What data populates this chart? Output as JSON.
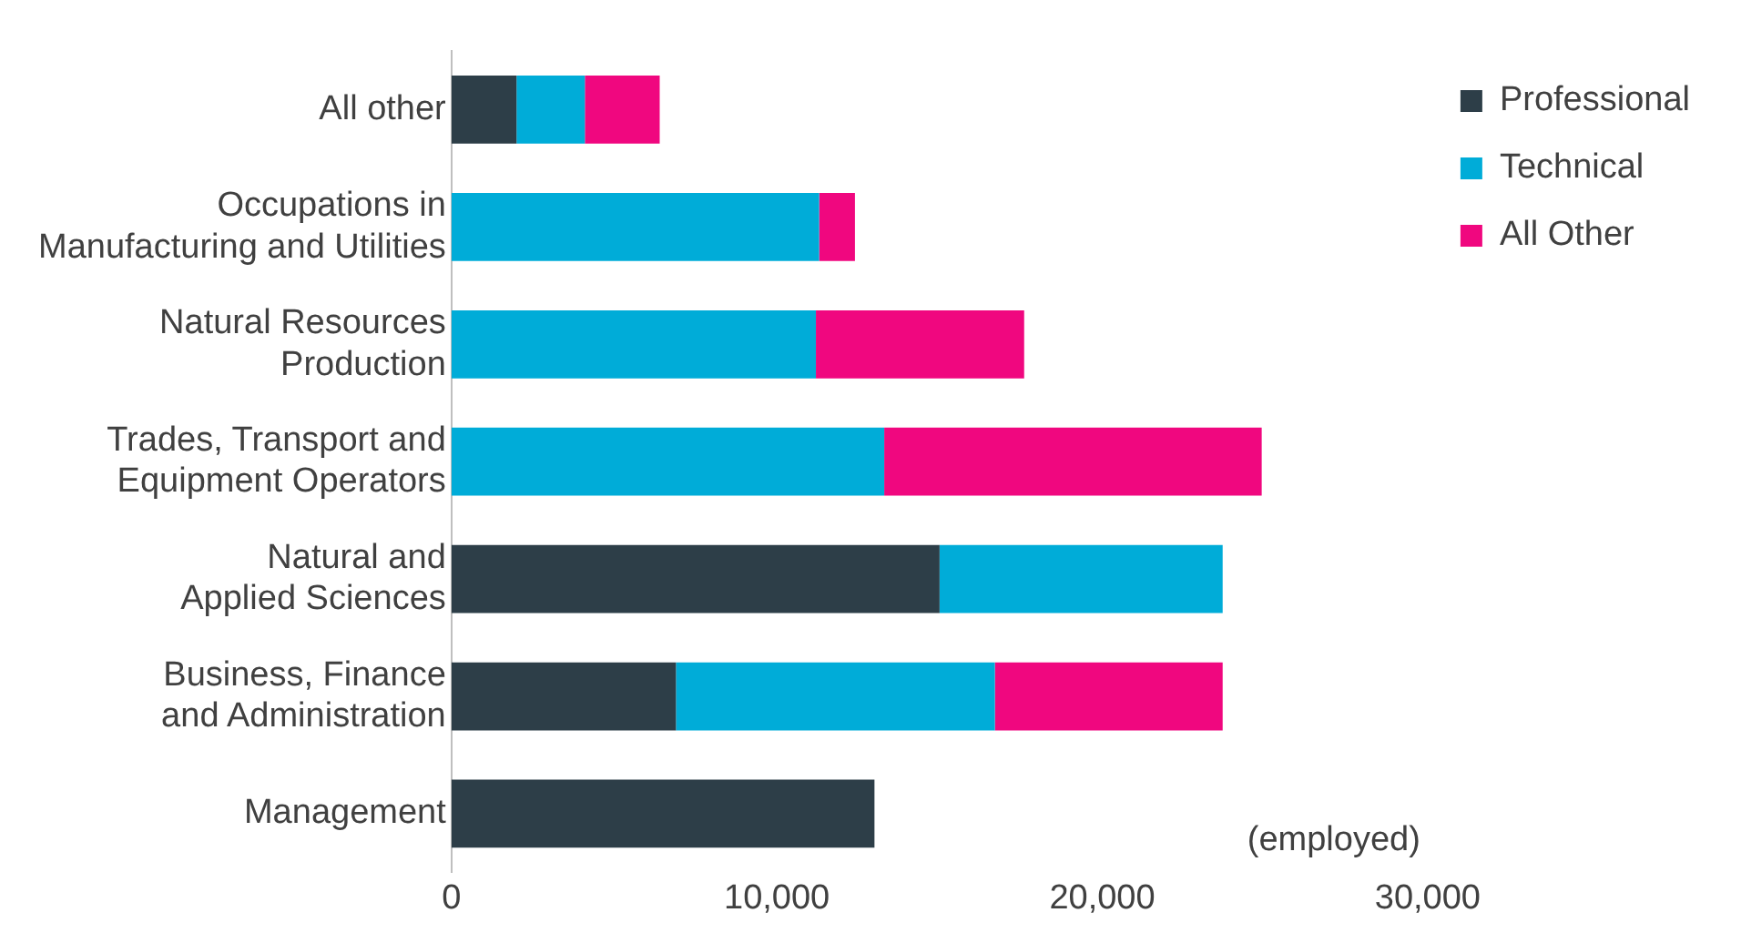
{
  "chart_data": {
    "type": "bar",
    "orientation": "horizontal",
    "stacked": true,
    "categories": [
      "All other",
      "Occupations in Manufacturing and Utilities",
      "Natural Resources Production",
      "Trades, Transport and Equipment Operators",
      "Natural and Applied Sciences",
      "Business, Finance and Administration",
      "Management"
    ],
    "series": [
      {
        "name": "Professional",
        "color": "#2d3e48",
        "values": [
          2000,
          0,
          0,
          0,
          15000,
          6900,
          13000
        ]
      },
      {
        "name": "Technical",
        "color": "#00acd8",
        "values": [
          2100,
          11300,
          11200,
          13300,
          8700,
          9800,
          0
        ]
      },
      {
        "name": "All Other",
        "color": "#f0077f",
        "values": [
          2300,
          1100,
          6400,
          11600,
          0,
          7000,
          0
        ]
      }
    ],
    "xlim": [
      0,
      30000
    ],
    "xticks": [
      0,
      {
        "value": 10000,
        "label": "10,000"
      },
      {
        "value": 20000,
        "label": "20,000"
      },
      {
        "value": 30000,
        "label": "30,000"
      }
    ],
    "grid": false,
    "legend": "top right",
    "annotations": [
      "(employed)"
    ]
  }
}
